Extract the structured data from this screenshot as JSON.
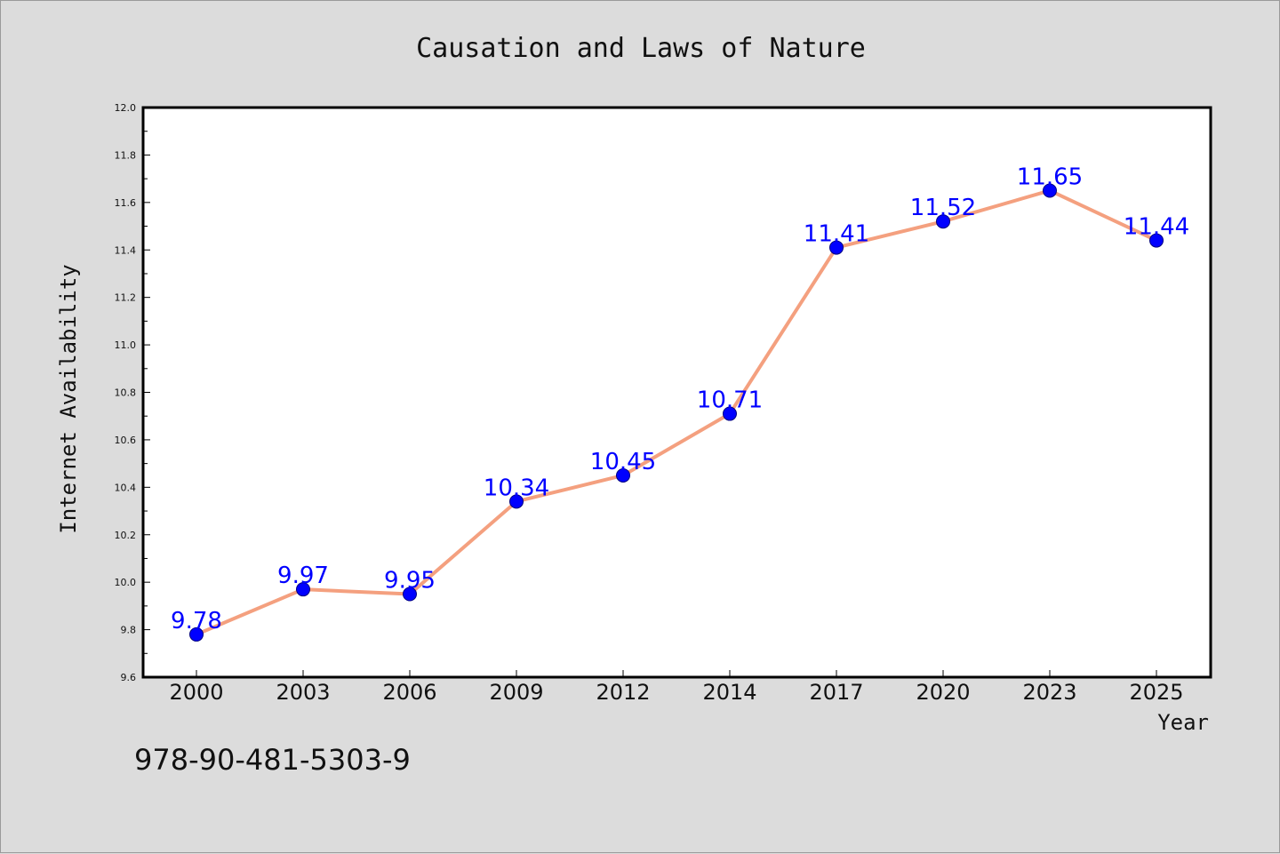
{
  "chart_data": {
    "type": "line",
    "title": "Causation and Laws of Nature",
    "xlabel": "Year",
    "ylabel": "Internet Availability",
    "categories": [
      "2000",
      "2003",
      "2006",
      "2009",
      "2012",
      "2014",
      "2017",
      "2020",
      "2023",
      "2025"
    ],
    "series": [
      {
        "values": [
          9.78,
          9.97,
          9.95,
          10.34,
          10.45,
          10.71,
          11.41,
          11.52,
          11.65,
          11.44
        ],
        "labels": [
          "9.78",
          "9.97",
          "9.95",
          "10.34",
          "10.45",
          "10.71",
          "11.41",
          "11.52",
          "11.65",
          "11.44"
        ]
      }
    ],
    "ylim": [
      9.6,
      12.0
    ],
    "yticks": [
      "9.6",
      "9.8",
      "10.0",
      "10.2",
      "10.4",
      "10.6",
      "10.8",
      "11.0",
      "11.2",
      "11.4",
      "11.6",
      "11.8",
      "12.0"
    ],
    "grid": false,
    "legend": "none",
    "colors": {
      "line": "#f4a07f",
      "marker": "#0000ff",
      "data_label": "#0000ff",
      "plot_background": "#ffffff",
      "page_background": "#dcdcdc"
    }
  },
  "footnote": "978-90-481-5303-9"
}
